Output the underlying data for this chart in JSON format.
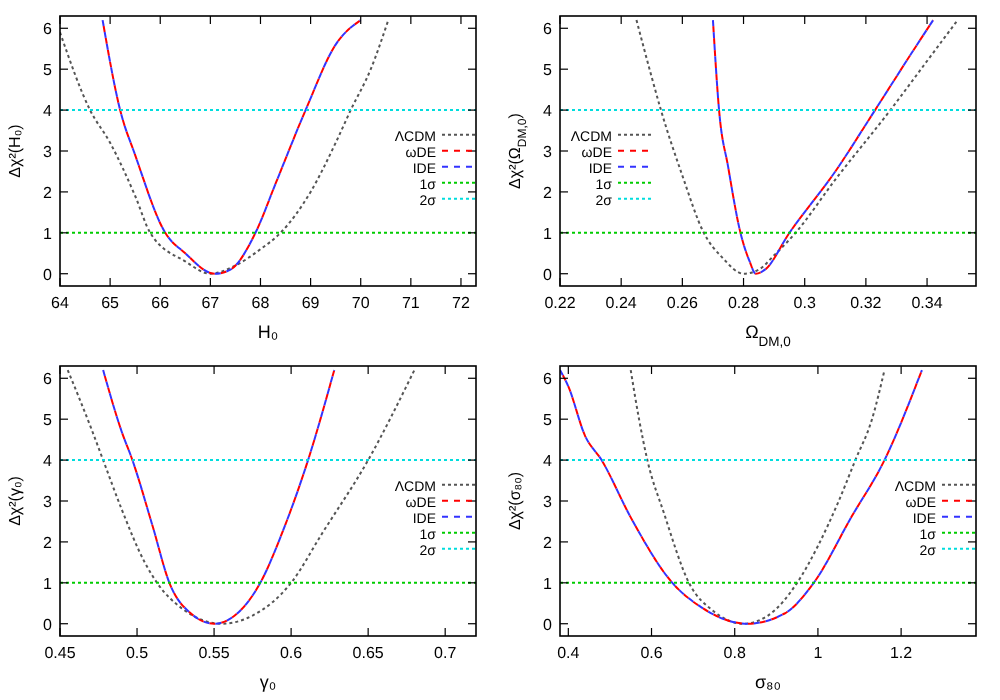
{
  "chart_data": [
    {
      "type": "line",
      "xlabel": "H₀",
      "ylabel": "Δχ²(H₀)",
      "xlim": [
        64,
        72.3
      ],
      "xticks": [
        64,
        65,
        66,
        67,
        68,
        69,
        70,
        71,
        72
      ],
      "ylim": [
        -0.3,
        6.3
      ],
      "yticks": [
        0,
        1,
        2,
        3,
        4,
        5,
        6
      ],
      "legend": "right",
      "series": [
        {
          "name": "ΛCDM",
          "color": "#555555",
          "line_style": "dotted",
          "x": [
            64,
            64.6,
            65,
            65.5,
            65.8,
            66.5,
            67,
            67.5,
            68,
            68.4,
            69,
            69.5,
            69.8,
            70.2,
            70.55
          ],
          "values": [
            5.9,
            4,
            3.2,
            1.9,
            1.0,
            0.3,
            0,
            0.2,
            0.6,
            1.0,
            2.0,
            3.2,
            4,
            5,
            6.2
          ]
        },
        {
          "name": "ωDE",
          "color": "#ff0000",
          "line_style": "dashed",
          "x": [
            64.85,
            65.2,
            65.5,
            66.1,
            66.5,
            67,
            67.1,
            67.4,
            67.9,
            68.3,
            68.9,
            69.5,
            70
          ],
          "values": [
            6.2,
            4,
            2.9,
            1.0,
            0.5,
            0.02,
            0,
            0.1,
            1.0,
            2.2,
            4,
            5.6,
            6.2
          ]
        },
        {
          "name": "IDE",
          "color": "#3333ff",
          "line_style": "dashed",
          "x": [
            64.85,
            65.2,
            65.5,
            66.1,
            66.5,
            67,
            67.1,
            67.4,
            67.9,
            68.3,
            68.9,
            69.5,
            70
          ],
          "values": [
            6.2,
            4,
            2.9,
            1.0,
            0.5,
            0.02,
            0,
            0.1,
            1.0,
            2.2,
            4,
            5.6,
            6.2
          ]
        },
        {
          "name": "1σ",
          "color": "#00cc00",
          "line_style": "dotted",
          "x": [
            64,
            72.3
          ],
          "values": [
            1,
            1
          ]
        },
        {
          "name": "2σ",
          "color": "#00dddd",
          "line_style": "dotted",
          "x": [
            64,
            72.3
          ],
          "values": [
            4,
            4
          ]
        }
      ]
    },
    {
      "type": "line",
      "xlabel": "Ω$_{DM,0}$",
      "ylabel": "Δχ²(Ω$_{DM,0}$)",
      "xlim": [
        0.22,
        0.356
      ],
      "xticks": [
        0.22,
        0.24,
        0.26,
        0.28,
        0.3,
        0.32,
        0.34
      ],
      "ylim": [
        -0.3,
        6.3
      ],
      "yticks": [
        0,
        1,
        2,
        3,
        4,
        5,
        6
      ],
      "legend": "left",
      "series": [
        {
          "name": "ΛCDM",
          "color": "#555555",
          "line_style": "dotted",
          "x": [
            0.245,
            0.25,
            0.253,
            0.26,
            0.267,
            0.273,
            0.28,
            0.285,
            0.29,
            0.297,
            0.31,
            0.328,
            0.34,
            0.35
          ],
          "values": [
            6.2,
            4.8,
            4,
            2.4,
            1.0,
            0.4,
            0,
            0.1,
            0.45,
            1.0,
            2.3,
            4,
            5.2,
            6.2
          ]
        },
        {
          "name": "ωDE",
          "color": "#ff0000",
          "line_style": "dashed",
          "x": [
            0.27,
            0.272,
            0.275,
            0.279,
            0.282,
            0.284,
            0.287,
            0.295,
            0.31,
            0.323,
            0.335,
            0.342
          ],
          "values": [
            6.2,
            4,
            2.6,
            1.0,
            0.3,
            0,
            0.1,
            1.0,
            2.5,
            4,
            5.4,
            6.2
          ]
        },
        {
          "name": "IDE",
          "color": "#3333ff",
          "line_style": "dashed",
          "x": [
            0.27,
            0.272,
            0.275,
            0.279,
            0.282,
            0.284,
            0.287,
            0.295,
            0.31,
            0.323,
            0.335,
            0.342
          ],
          "values": [
            6.2,
            4,
            2.6,
            1.0,
            0.3,
            0,
            0.1,
            1.0,
            2.5,
            4,
            5.4,
            6.2
          ]
        },
        {
          "name": "1σ",
          "color": "#00cc00",
          "line_style": "dotted",
          "x": [
            0.22,
            0.356
          ],
          "values": [
            1,
            1
          ]
        },
        {
          "name": "2σ",
          "color": "#00dddd",
          "line_style": "dotted",
          "x": [
            0.22,
            0.356
          ],
          "values": [
            4,
            4
          ]
        }
      ]
    },
    {
      "type": "line",
      "xlabel": "γ₀",
      "ylabel": "Δχ²(γ₀)",
      "xlim": [
        0.45,
        0.72
      ],
      "xticks": [
        0.45,
        0.5,
        0.55,
        0.6,
        0.65,
        0.7
      ],
      "ylim": [
        -0.3,
        6.3
      ],
      "yticks": [
        0,
        1,
        2,
        3,
        4,
        5,
        6
      ],
      "legend": "right",
      "series": [
        {
          "name": "ΛCDM",
          "color": "#555555",
          "line_style": "dotted",
          "x": [
            0.455,
            0.47,
            0.478,
            0.49,
            0.505,
            0.513,
            0.53,
            0.555,
            0.575,
            0.6,
            0.62,
            0.65,
            0.68
          ],
          "values": [
            6.2,
            4.8,
            4,
            2.8,
            1.5,
            1.0,
            0.35,
            0,
            0.2,
            1.0,
            2.2,
            4,
            6.2
          ]
        },
        {
          "name": "ωDE",
          "color": "#ff0000",
          "line_style": "dashed",
          "x": [
            0.478,
            0.49,
            0.497,
            0.51,
            0.521,
            0.535,
            0.55,
            0.565,
            0.58,
            0.595,
            0.611,
            0.628
          ],
          "values": [
            6.2,
            4.7,
            4,
            2.4,
            1.0,
            0.25,
            0,
            0.25,
            1.0,
            2.3,
            4,
            6.2
          ]
        },
        {
          "name": "IDE",
          "color": "#3333ff",
          "line_style": "dashed",
          "x": [
            0.478,
            0.49,
            0.497,
            0.51,
            0.521,
            0.535,
            0.55,
            0.565,
            0.58,
            0.595,
            0.611,
            0.628
          ],
          "values": [
            6.2,
            4.7,
            4,
            2.4,
            1.0,
            0.25,
            0,
            0.25,
            1.0,
            2.3,
            4,
            6.2
          ]
        },
        {
          "name": "1σ",
          "color": "#00cc00",
          "line_style": "dotted",
          "x": [
            0.45,
            0.72
          ],
          "values": [
            1,
            1
          ]
        },
        {
          "name": "2σ",
          "color": "#00dddd",
          "line_style": "dotted",
          "x": [
            0.45,
            0.72
          ],
          "values": [
            4,
            4
          ]
        }
      ]
    },
    {
      "type": "line",
      "xlabel": "σ₈₀",
      "ylabel": "Δχ²(σ₈₀)",
      "xlim": [
        0.38,
        1.38
      ],
      "xticks": [
        0.4,
        0.6,
        0.8,
        1,
        1.2
      ],
      "ylim": [
        -0.3,
        6.3
      ],
      "yticks": [
        0,
        1,
        2,
        3,
        4,
        5,
        6
      ],
      "legend": "right",
      "series": [
        {
          "name": "ΛCDM",
          "color": "#555555",
          "line_style": "dotted",
          "x": [
            0.55,
            0.57,
            0.59,
            0.63,
            0.69,
            0.75,
            0.82,
            0.88,
            0.95,
            1.0,
            1.05,
            1.09,
            1.13,
            1.16
          ],
          "values": [
            6.2,
            5,
            4,
            2.7,
            1.0,
            0.3,
            0,
            0.2,
            1.0,
            1.9,
            3,
            4,
            5,
            6.2
          ]
        },
        {
          "name": "ωDE",
          "color": "#ff0000",
          "line_style": "dashed",
          "x": [
            0.38,
            0.4,
            0.44,
            0.48,
            0.55,
            0.65,
            0.72,
            0.83,
            0.92,
            0.99,
            1.08,
            1.16,
            1.25
          ],
          "values": [
            6.2,
            5.8,
            4.6,
            4,
            2.6,
            1.0,
            0.4,
            0,
            0.25,
            1.0,
            2.6,
            4,
            6.2
          ]
        },
        {
          "name": "IDE",
          "color": "#3333ff",
          "line_style": "dashed",
          "x": [
            0.38,
            0.4,
            0.44,
            0.48,
            0.55,
            0.65,
            0.72,
            0.83,
            0.92,
            0.99,
            1.08,
            1.16,
            1.25
          ],
          "values": [
            6.2,
            5.8,
            4.6,
            4,
            2.6,
            1.0,
            0.4,
            0,
            0.25,
            1.0,
            2.6,
            4,
            6.2
          ]
        },
        {
          "name": "1σ",
          "color": "#00cc00",
          "line_style": "dotted",
          "x": [
            0.38,
            1.38
          ],
          "values": [
            1,
            1
          ]
        },
        {
          "name": "2σ",
          "color": "#00dddd",
          "line_style": "dotted",
          "x": [
            0.38,
            1.38
          ],
          "values": [
            4,
            4
          ]
        }
      ]
    }
  ]
}
